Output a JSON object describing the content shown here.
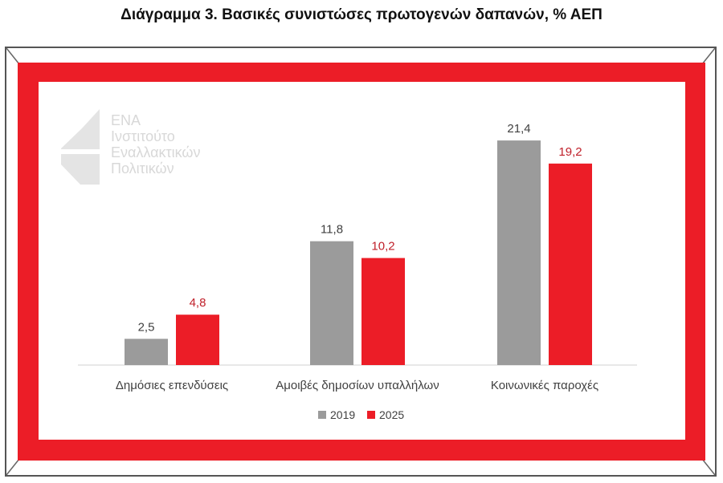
{
  "title": "Διάγραμμα 3. Βασικές συνιστώσες πρωτογενών δαπανών, % ΑΕΠ",
  "logo": {
    "line1": "ΕΝΑ",
    "line2": "Ινστιτούτο",
    "line3": "Εναλλακτικών",
    "line4": "Πολιτικών"
  },
  "colors": {
    "series_2019": "#9b9b9b",
    "series_2025": "#ec1d27",
    "frame": "#ec1d27",
    "label_2019": "#404040",
    "label_2025": "#c0202a"
  },
  "chart_data": {
    "type": "bar",
    "title": "Διάγραμμα 3. Βασικές συνιστώσες πρωτογενών δαπανών, % ΑΕΠ",
    "categories": [
      "Δημόσιες επενδύσεις",
      "Αμοιβές δημοσίων υπαλλήλων",
      "Κοινωνικές παροχές"
    ],
    "series": [
      {
        "name": "2019",
        "values": [
          2.5,
          11.8,
          21.4
        ],
        "labels": [
          "2,5",
          "11,8",
          "21,4"
        ]
      },
      {
        "name": "2025",
        "values": [
          4.8,
          10.2,
          19.2
        ],
        "labels": [
          "4,8",
          "10,2",
          "19,2"
        ]
      }
    ],
    "ylim": [
      0,
      24
    ],
    "legend": "bottom-center",
    "grid": false,
    "xlabel": "",
    "ylabel": ""
  }
}
